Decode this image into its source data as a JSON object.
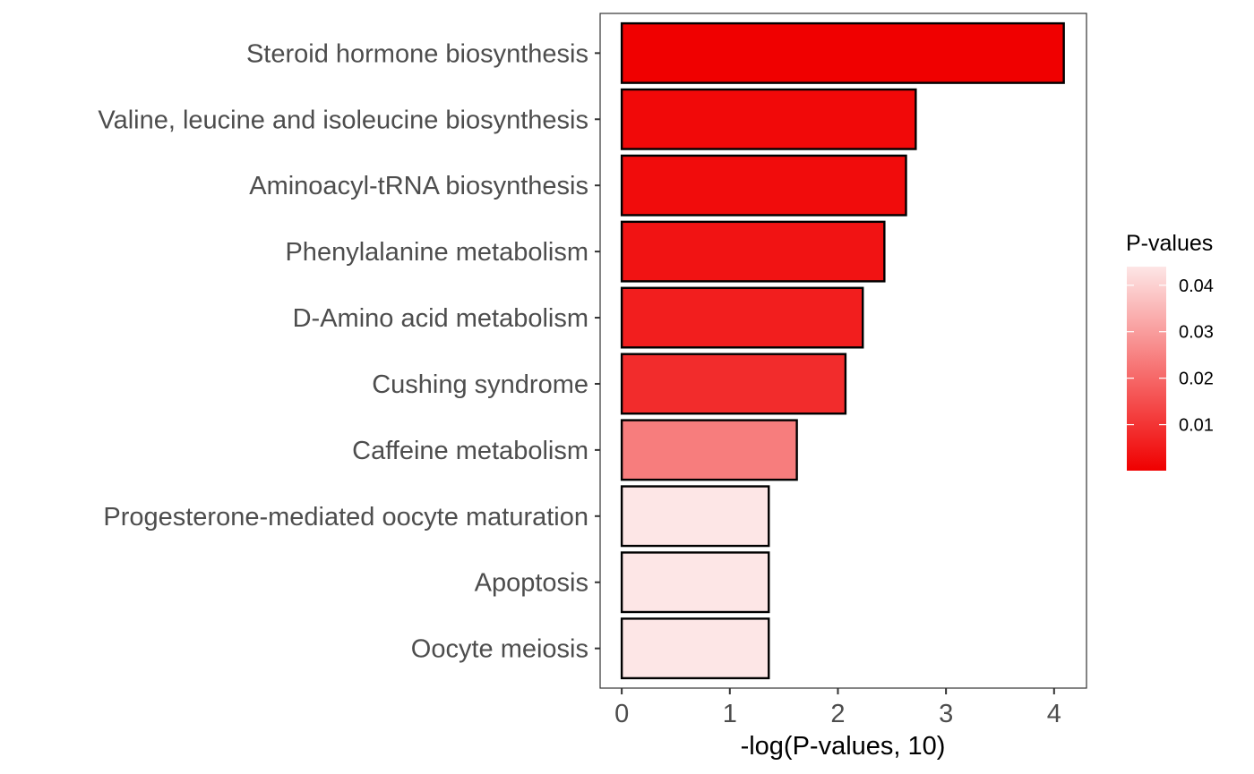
{
  "chart_data": {
    "type": "bar",
    "orientation": "horizontal",
    "xlabel": "-log(P-values, 10)",
    "ylabel": "",
    "xlim": [
      -0.2,
      4.3
    ],
    "xticks": [
      0,
      1,
      2,
      3,
      4
    ],
    "grid": false,
    "categories": [
      "Steroid hormone biosynthesis",
      "Valine, leucine and isoleucine biosynthesis",
      "Aminoacyl-tRNA biosynthesis",
      "Phenylalanine metabolism",
      "D-Amino acid metabolism",
      "Cushing syndrome",
      "Caffeine metabolism",
      "Progesterone-mediated oocyte maturation",
      "Apoptosis",
      "Oocyte meiosis"
    ],
    "values": [
      4.09,
      2.72,
      2.63,
      2.43,
      2.23,
      2.07,
      1.62,
      1.36,
      1.36,
      1.36
    ],
    "p_values": [
      0.0001,
      0.0019,
      0.0023,
      0.0037,
      0.0059,
      0.0085,
      0.024,
      0.044,
      0.044,
      0.044
    ],
    "legend": {
      "title": "P-values",
      "position": "right",
      "ticks": [
        0.01,
        0.02,
        0.03,
        0.04
      ],
      "ticklabels": [
        "0.01",
        "0.02",
        "0.03",
        "0.04"
      ],
      "range": [
        0.0001,
        0.044
      ],
      "color_low": "#f00000",
      "color_high": "#fde6e6"
    }
  }
}
